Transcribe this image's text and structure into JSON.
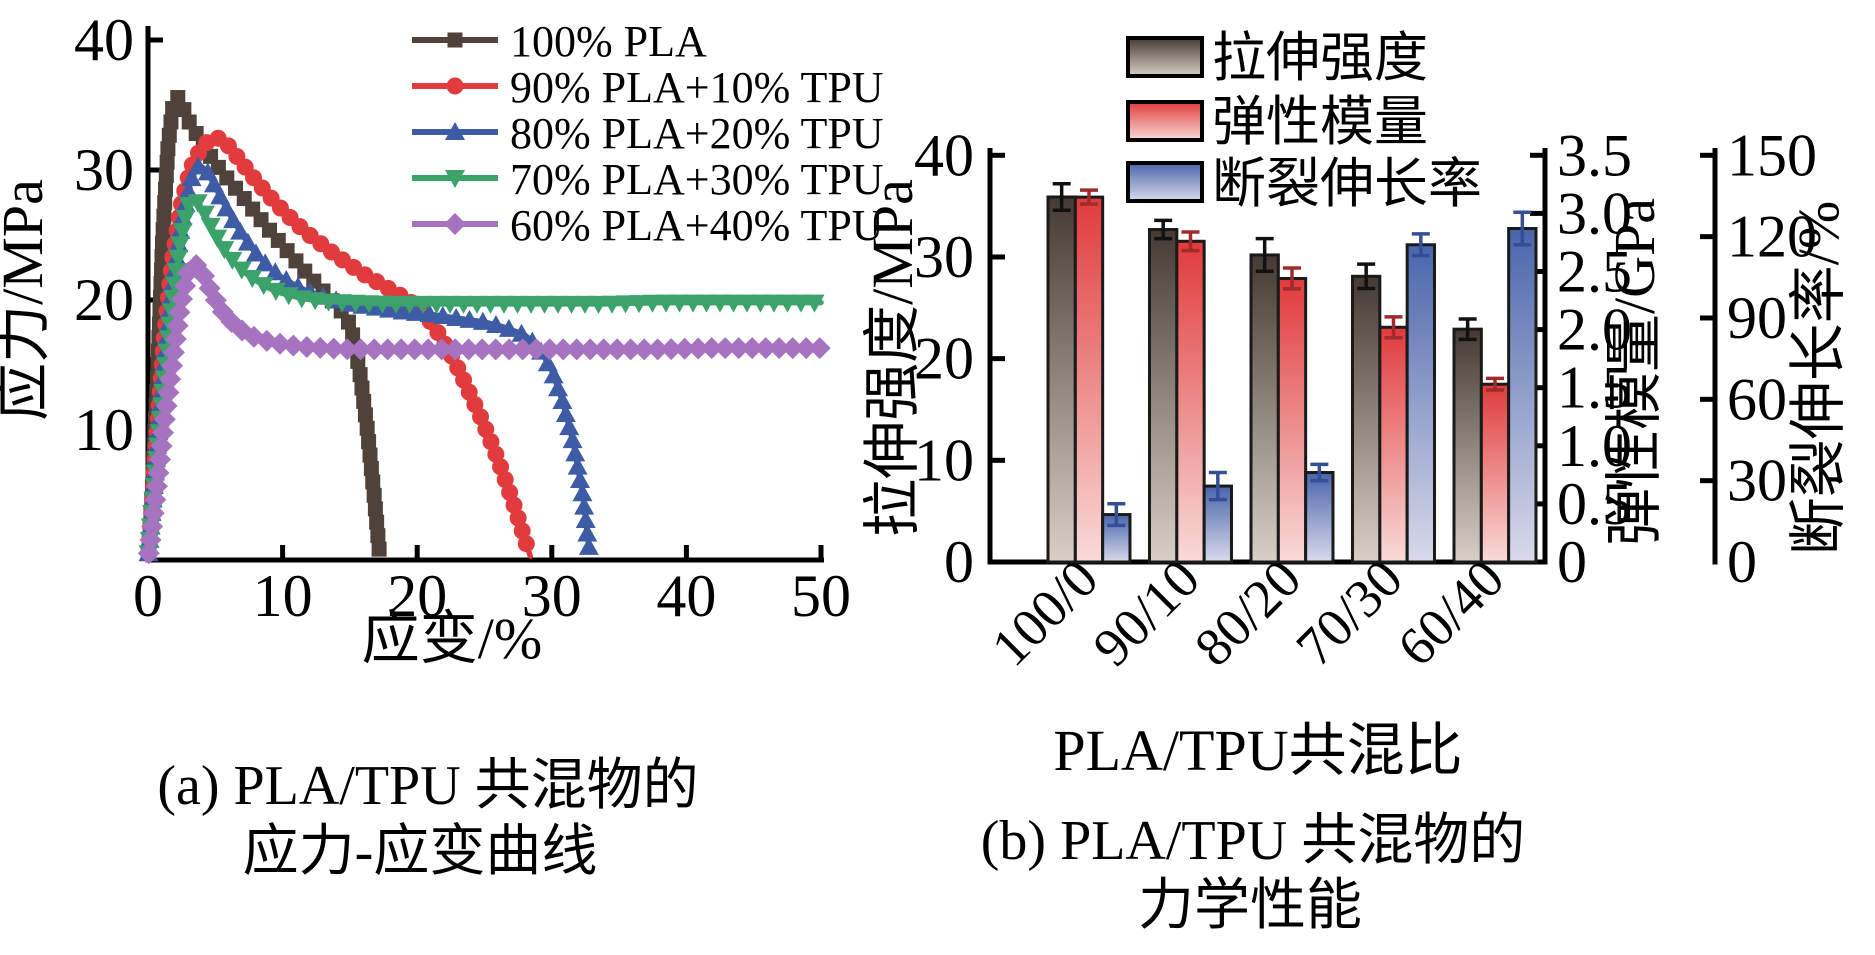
{
  "figure_background": "#ffffff",
  "chart_data": [
    {
      "type": "line",
      "title": "",
      "xlabel": "应变/%",
      "ylabel": "应力/MPa",
      "caption1": "(a) PLA/TPU 共混物的",
      "caption2": "应力-应变曲线",
      "xlim": [
        0,
        50
      ],
      "ylim": [
        0,
        40
      ],
      "x_ticks": [
        0,
        10,
        20,
        30,
        40,
        50
      ],
      "y_ticks": [
        10,
        20,
        30,
        40
      ],
      "grid": false,
      "legend_position": "top-right-inside",
      "series": [
        {
          "name": "100% PLA",
          "color": "#4e423b",
          "marker": "square",
          "points": [
            [
              0,
              0
            ],
            [
              0.3,
              5
            ],
            [
              0.7,
              14
            ],
            [
              1.1,
              25
            ],
            [
              1.5,
              32
            ],
            [
              1.9,
              35.3
            ],
            [
              2.2,
              35.6
            ],
            [
              2.6,
              34.8
            ],
            [
              3.1,
              33.6
            ],
            [
              3.7,
              32.6
            ],
            [
              4.3,
              31.6
            ],
            [
              5,
              30.5
            ],
            [
              6,
              29.2
            ],
            [
              7,
              28
            ],
            [
              8,
              26.7
            ],
            [
              9,
              25.4
            ],
            [
              10,
              24.2
            ],
            [
              11,
              23
            ],
            [
              12,
              21.8
            ],
            [
              13,
              20.7
            ],
            [
              14,
              19.6
            ],
            [
              14.8,
              18.6
            ],
            [
              15.3,
              17
            ],
            [
              15.8,
              14
            ],
            [
              16.3,
              10
            ],
            [
              16.8,
              5
            ],
            [
              17.2,
              0.5
            ]
          ]
        },
        {
          "name": "90% PLA+10% TPU",
          "color": "#e23b3e",
          "marker": "circle",
          "points": [
            [
              0,
              0
            ],
            [
              0.3,
              4
            ],
            [
              0.7,
              10
            ],
            [
              1.2,
              17
            ],
            [
              1.8,
              23
            ],
            [
              2.5,
              27.5
            ],
            [
              3.2,
              30.2
            ],
            [
              4,
              31.8
            ],
            [
              4.8,
              32.5
            ],
            [
              5.5,
              32.4
            ],
            [
              6.2,
              31.6
            ],
            [
              7,
              30.5
            ],
            [
              8,
              29.2
            ],
            [
              9,
              28
            ],
            [
              10,
              26.9
            ],
            [
              11,
              25.9
            ],
            [
              12,
              25
            ],
            [
              13,
              24.2
            ],
            [
              14,
              23.4
            ],
            [
              15,
              22.7
            ],
            [
              16,
              22
            ],
            [
              17,
              21.4
            ],
            [
              18,
              20.8
            ],
            [
              19,
              20.2
            ],
            [
              20,
              19.5
            ],
            [
              20.8,
              18.6
            ],
            [
              21.6,
              17.4
            ],
            [
              22.4,
              16
            ],
            [
              23.2,
              14.4
            ],
            [
              24,
              12.6
            ],
            [
              24.8,
              10.8
            ],
            [
              25.6,
              8.8
            ],
            [
              26.4,
              6.6
            ],
            [
              27.2,
              4.2
            ],
            [
              28,
              1.6
            ],
            [
              28.4,
              0.3
            ]
          ]
        },
        {
          "name": "80% PLA+20% TPU",
          "color": "#3e5ca6",
          "marker": "triangle-up",
          "points": [
            [
              0,
              0
            ],
            [
              0.3,
              4
            ],
            [
              0.7,
              9
            ],
            [
              1.2,
              15
            ],
            [
              1.8,
              21
            ],
            [
              2.5,
              26
            ],
            [
              3.2,
              29.3
            ],
            [
              3.8,
              30.4
            ],
            [
              4.4,
              29.9
            ],
            [
              5.1,
              28.5
            ],
            [
              6,
              26.7
            ],
            [
              7,
              25
            ],
            [
              8,
              23.6
            ],
            [
              9,
              22.5
            ],
            [
              10,
              21.7
            ],
            [
              11,
              21.1
            ],
            [
              12,
              20.6
            ],
            [
              13.5,
              20.1
            ],
            [
              15,
              19.7
            ],
            [
              17,
              19.4
            ],
            [
              19,
              19.1
            ],
            [
              21,
              18.9
            ],
            [
              23,
              18.6
            ],
            [
              25,
              18.3
            ],
            [
              26.5,
              17.9
            ],
            [
              28,
              17.3
            ],
            [
              29,
              16.4
            ],
            [
              30,
              14.6
            ],
            [
              30.8,
              12.2
            ],
            [
              31.6,
              9
            ],
            [
              32.3,
              5
            ],
            [
              32.8,
              0.6
            ]
          ]
        },
        {
          "name": "70% PLA+30% TPU",
          "color": "#3ba26a",
          "marker": "triangle-down",
          "points": [
            [
              0,
              0
            ],
            [
              0.3,
              3.5
            ],
            [
              0.7,
              8
            ],
            [
              1.2,
              13.5
            ],
            [
              1.8,
              19.5
            ],
            [
              2.4,
              24.5
            ],
            [
              3,
              27.3
            ],
            [
              3.5,
              27.8
            ],
            [
              4.1,
              26.9
            ],
            [
              4.8,
              25.4
            ],
            [
              5.6,
              24
            ],
            [
              6.4,
              22.9
            ],
            [
              7.2,
              22.1
            ],
            [
              8,
              21.5
            ],
            [
              9,
              20.9
            ],
            [
              10,
              20.5
            ],
            [
              11.5,
              20.1
            ],
            [
              13,
              19.9
            ],
            [
              15,
              19.8
            ],
            [
              18,
              19.7
            ],
            [
              22,
              19.7
            ],
            [
              26,
              19.7
            ],
            [
              30,
              19.7
            ],
            [
              34,
              19.7
            ],
            [
              38,
              19.8
            ],
            [
              42,
              19.8
            ],
            [
              46,
              19.8
            ],
            [
              50,
              19.8
            ]
          ]
        },
        {
          "name": "60% PLA+40% TPU",
          "color": "#a573c0",
          "marker": "diamond",
          "points": [
            [
              0,
              0
            ],
            [
              0.3,
              2.5
            ],
            [
              0.7,
              6
            ],
            [
              1.2,
              10.5
            ],
            [
              1.8,
              15
            ],
            [
              2.4,
              19.5
            ],
            [
              3,
              22.2
            ],
            [
              3.5,
              22.8
            ],
            [
              4.1,
              22
            ],
            [
              4.8,
              20.4
            ],
            [
              5.6,
              19
            ],
            [
              6.4,
              18.1
            ],
            [
              7.2,
              17.5
            ],
            [
              8,
              17.1
            ],
            [
              9,
              16.8
            ],
            [
              10,
              16.6
            ],
            [
              11.5,
              16.4
            ],
            [
              13,
              16.3
            ],
            [
              15,
              16.2
            ],
            [
              18,
              16.2
            ],
            [
              22,
              16.2
            ],
            [
              26,
              16.2
            ],
            [
              30,
              16.2
            ],
            [
              34,
              16.2
            ],
            [
              38,
              16.2
            ],
            [
              42,
              16.3
            ],
            [
              46,
              16.3
            ],
            [
              50,
              16.3
            ]
          ]
        }
      ]
    },
    {
      "type": "bar",
      "title": "",
      "xlabel": "PLA/TPU共混比",
      "caption1": "(b) PLA/TPU 共混物的",
      "caption2": "力学性能",
      "categories": [
        "100/0",
        "90/10",
        "80/20",
        "70/30",
        "60/40"
      ],
      "grid": false,
      "legend_position": "top-right-inside",
      "axis_left": {
        "label": "拉伸强度/MPa",
        "ticks": [
          0,
          10,
          20,
          30,
          40
        ],
        "max": 40
      },
      "axis_mid": {
        "label": "弹性模量/GPa",
        "ticks": [
          0,
          0.5,
          1.0,
          1.5,
          2.0,
          2.5,
          3.0,
          3.5
        ],
        "max": 3.5
      },
      "axis_right": {
        "label": "断裂伸长率/%",
        "ticks": [
          0,
          30,
          60,
          90,
          120,
          150
        ],
        "max": 150
      },
      "series": [
        {
          "name": "拉伸强度",
          "axis": "left",
          "unit": "MPa",
          "color_top": "#443a33",
          "color_bottom": "#d8d0c6",
          "err_color": "#111111",
          "values": [
            35.9,
            32.7,
            30.2,
            28.1,
            22.9
          ],
          "errors": [
            1.3,
            0.9,
            1.6,
            1.2,
            1.0
          ]
        },
        {
          "name": "弹性模量",
          "axis": "mid",
          "unit": "GPa",
          "color_top": "#e13a3c",
          "color_bottom": "#f8dbd8",
          "err_color": "#9f2b2d",
          "values": [
            3.14,
            2.76,
            2.44,
            2.02,
            1.53
          ],
          "errors": [
            0.06,
            0.08,
            0.09,
            0.09,
            0.05
          ]
        },
        {
          "name": "断裂伸长率",
          "axis": "right",
          "unit": "%",
          "color_top": "#4965ab",
          "color_bottom": "#d9daeb",
          "err_color": "#344f96",
          "values": [
            17.5,
            28,
            33,
            117,
            123
          ],
          "errors": [
            4,
            5,
            3,
            4,
            6
          ]
        }
      ]
    }
  ]
}
